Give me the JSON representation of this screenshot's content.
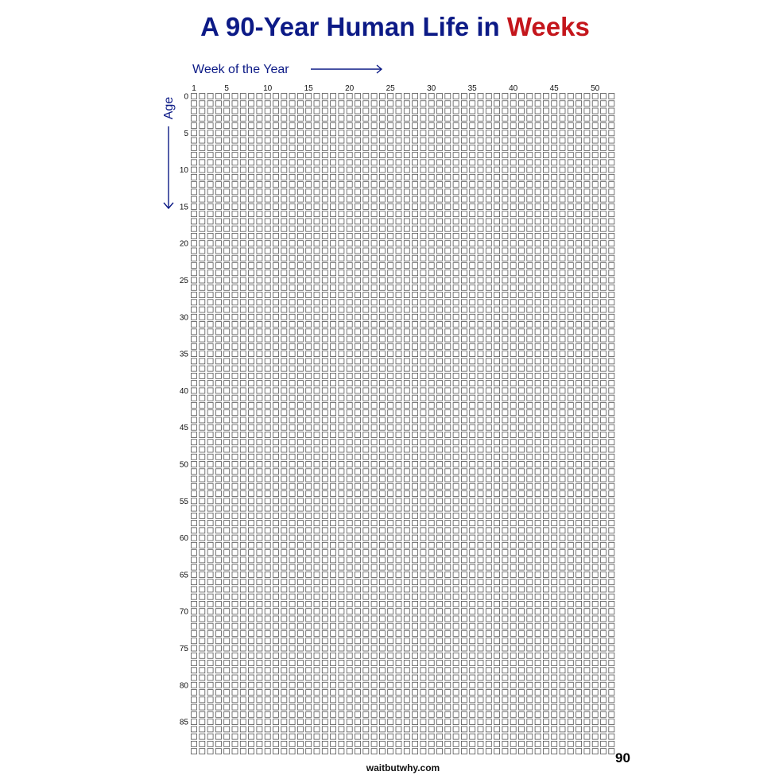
{
  "title": {
    "main": "A 90-Year Human Life in ",
    "accent": "Weeks"
  },
  "x_axis": {
    "label": "Week of the Year"
  },
  "y_axis": {
    "label": "Age"
  },
  "footer": {
    "total": "90",
    "source": "waitbutwhy.com"
  },
  "colors": {
    "title": "#0c1a86",
    "accent": "#c4161c",
    "box_stroke": "#555555"
  },
  "chart_data": {
    "type": "grid",
    "weeks_per_year": 52,
    "years": 90,
    "x_tick_labels": [
      "1",
      "5",
      "10",
      "15",
      "20",
      "25",
      "30",
      "35",
      "40",
      "45",
      "50"
    ],
    "x_tick_values": [
      1,
      5,
      10,
      15,
      20,
      25,
      30,
      35,
      40,
      45,
      50
    ],
    "y_tick_labels": [
      "0",
      "5",
      "10",
      "15",
      "20",
      "25",
      "30",
      "35",
      "40",
      "45",
      "50",
      "55",
      "60",
      "65",
      "70",
      "75",
      "80",
      "85"
    ],
    "y_tick_values": [
      0,
      5,
      10,
      15,
      20,
      25,
      30,
      35,
      40,
      45,
      50,
      55,
      60,
      65,
      70,
      75,
      80,
      85
    ]
  }
}
